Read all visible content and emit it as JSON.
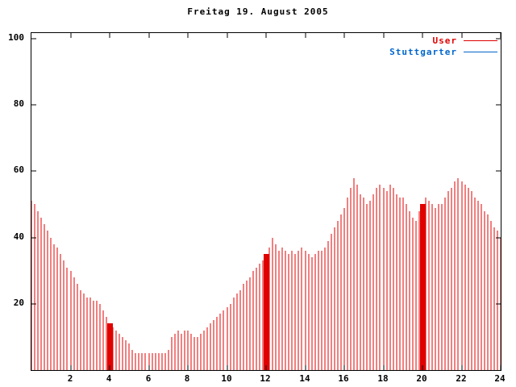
{
  "title": "Freitag 19. August 2005",
  "legend": [
    {
      "label": "User",
      "color": "#e00000"
    },
    {
      "label": "Stuttgarter",
      "color": "#0066cc"
    }
  ],
  "colors": {
    "background": "#ffffff",
    "axis": "#000000",
    "user_series": "#e00000",
    "stuttgarter_series": "#0066cc"
  },
  "chart_data": {
    "type": "bar",
    "subtype": "impulses",
    "title": "Freitag 19. August 2005",
    "xlabel": "",
    "ylabel": "",
    "x_unit": "hour_of_day",
    "xlim": [
      0,
      24
    ],
    "ylim": [
      0,
      100
    ],
    "xticks": [
      2,
      4,
      6,
      8,
      10,
      12,
      14,
      16,
      18,
      20,
      22,
      24
    ],
    "yticks": [
      20,
      40,
      60,
      80,
      100
    ],
    "grid": false,
    "legend_position": "top-right-inside",
    "series": [
      {
        "name": "User",
        "color": "#e00000",
        "x_start": 0,
        "x_step_hours": 0.166667,
        "values": [
          51,
          50,
          48,
          46,
          44,
          42,
          40,
          38,
          37,
          35,
          33,
          31,
          30,
          28,
          26,
          24,
          23,
          22,
          22,
          21,
          21,
          20,
          18,
          16,
          14,
          13,
          12,
          11,
          10,
          9,
          8,
          6,
          5,
          5,
          5,
          5,
          5,
          5,
          5,
          5,
          5,
          5,
          6,
          10,
          11,
          12,
          11,
          12,
          12,
          11,
          10,
          10,
          11,
          12,
          13,
          14,
          15,
          16,
          17,
          18,
          19,
          20,
          22,
          23,
          24,
          26,
          27,
          28,
          30,
          31,
          32,
          33,
          35,
          37,
          40,
          38,
          36,
          37,
          36,
          35,
          36,
          35,
          36,
          37,
          36,
          35,
          34,
          35,
          36,
          36,
          37,
          39,
          41,
          43,
          45,
          47,
          49,
          52,
          55,
          58,
          56,
          53,
          52,
          50,
          51,
          53,
          55,
          56,
          55,
          54,
          56,
          55,
          53,
          52,
          52,
          50,
          48,
          46,
          45,
          48,
          50,
          52,
          51,
          50,
          49,
          50,
          50,
          52,
          54,
          55,
          57,
          58,
          57,
          56,
          55,
          54,
          52,
          51,
          50,
          48,
          47,
          45,
          43,
          42,
          40
        ]
      },
      {
        "name": "Stuttgarter",
        "color": "#0066cc",
        "values": []
      }
    ],
    "solid_bars": [
      {
        "x_hour": 4,
        "height": 14
      },
      {
        "x_hour": 12,
        "height": 35
      },
      {
        "x_hour": 20,
        "height": 50
      }
    ]
  }
}
